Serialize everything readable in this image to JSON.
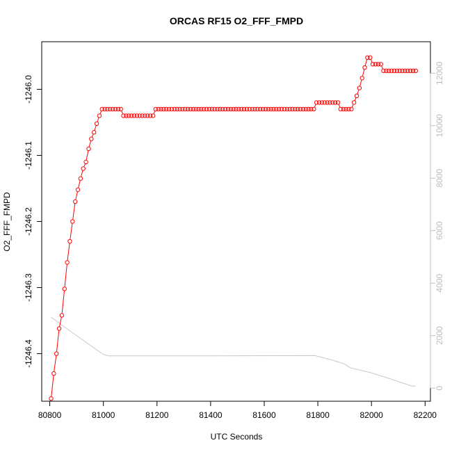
{
  "chart_data": {
    "type": "scatter",
    "title": "ORCAS RF15 O2_FFF_FMPD",
    "xlabel": "UTC Seconds",
    "ylabel": "O2_FFF_FMPD",
    "xlim": [
      80770,
      82220
    ],
    "ylim": [
      -1246.472,
      -1245.928
    ],
    "x_ticks": [
      80800,
      81000,
      81200,
      81400,
      81600,
      81800,
      82000,
      82200
    ],
    "y_ticks": [
      -1246.0,
      -1246.1,
      -1246.2,
      -1246.3,
      -1246.4
    ],
    "y_tick_labels": [
      "-1246.0",
      "-1246.1",
      "-1246.2",
      "-1246.3",
      "-1246.4"
    ],
    "y2_lim": [
      -500,
      13200
    ],
    "y2_ticks": [
      0,
      2000,
      4000,
      6000,
      8000,
      10000,
      12000
    ],
    "grid": false,
    "colors": {
      "series": "#ff0000",
      "secondary": "#c8c8c8",
      "right_axis": "#bdbdbd"
    },
    "series": [
      {
        "points": [
          [
            80805,
            -1246.468
          ],
          [
            80815,
            -1246.43
          ],
          [
            80825,
            -1246.4
          ],
          [
            80835,
            -1246.362
          ],
          [
            80845,
            -1246.342
          ],
          [
            80855,
            -1246.302
          ],
          [
            80865,
            -1246.262
          ],
          [
            80875,
            -1246.23
          ],
          [
            80885,
            -1246.2
          ],
          [
            80895,
            -1246.17
          ],
          [
            80905,
            -1246.152
          ],
          [
            80915,
            -1246.135
          ],
          [
            80925,
            -1246.12
          ],
          [
            80935,
            -1246.11
          ],
          [
            80945,
            -1246.09
          ],
          [
            80955,
            -1246.075
          ],
          [
            80965,
            -1246.065
          ],
          [
            80975,
            -1246.052
          ],
          [
            80985,
            -1246.04
          ],
          [
            80995,
            -1246.03
          ],
          [
            81005,
            -1246.03
          ],
          [
            81015,
            -1246.03
          ],
          [
            81025,
            -1246.03
          ],
          [
            81035,
            -1246.03
          ],
          [
            81045,
            -1246.03
          ],
          [
            81055,
            -1246.03
          ],
          [
            81065,
            -1246.03
          ],
          [
            81075,
            -1246.04
          ],
          [
            81085,
            -1246.04
          ],
          [
            81095,
            -1246.04
          ],
          [
            81105,
            -1246.04
          ],
          [
            81115,
            -1246.04
          ],
          [
            81125,
            -1246.04
          ],
          [
            81135,
            -1246.04
          ],
          [
            81145,
            -1246.04
          ],
          [
            81155,
            -1246.04
          ],
          [
            81165,
            -1246.04
          ],
          [
            81175,
            -1246.04
          ],
          [
            81185,
            -1246.04
          ],
          [
            81195,
            -1246.03
          ],
          [
            81205,
            -1246.03
          ],
          [
            81215,
            -1246.03
          ],
          [
            81225,
            -1246.03
          ],
          [
            81235,
            -1246.03
          ],
          [
            81245,
            -1246.03
          ],
          [
            81255,
            -1246.03
          ],
          [
            81265,
            -1246.03
          ],
          [
            81275,
            -1246.03
          ],
          [
            81285,
            -1246.03
          ],
          [
            81295,
            -1246.03
          ],
          [
            81305,
            -1246.03
          ],
          [
            81315,
            -1246.03
          ],
          [
            81325,
            -1246.03
          ],
          [
            81335,
            -1246.03
          ],
          [
            81345,
            -1246.03
          ],
          [
            81355,
            -1246.03
          ],
          [
            81365,
            -1246.03
          ],
          [
            81375,
            -1246.03
          ],
          [
            81385,
            -1246.03
          ],
          [
            81395,
            -1246.03
          ],
          [
            81405,
            -1246.03
          ],
          [
            81415,
            -1246.03
          ],
          [
            81425,
            -1246.03
          ],
          [
            81435,
            -1246.03
          ],
          [
            81445,
            -1246.03
          ],
          [
            81455,
            -1246.03
          ],
          [
            81465,
            -1246.03
          ],
          [
            81475,
            -1246.03
          ],
          [
            81485,
            -1246.03
          ],
          [
            81495,
            -1246.03
          ],
          [
            81505,
            -1246.03
          ],
          [
            81515,
            -1246.03
          ],
          [
            81525,
            -1246.03
          ],
          [
            81535,
            -1246.03
          ],
          [
            81545,
            -1246.03
          ],
          [
            81555,
            -1246.03
          ],
          [
            81565,
            -1246.03
          ],
          [
            81575,
            -1246.03
          ],
          [
            81585,
            -1246.03
          ],
          [
            81595,
            -1246.03
          ],
          [
            81605,
            -1246.03
          ],
          [
            81615,
            -1246.03
          ],
          [
            81625,
            -1246.03
          ],
          [
            81635,
            -1246.03
          ],
          [
            81645,
            -1246.03
          ],
          [
            81655,
            -1246.03
          ],
          [
            81665,
            -1246.03
          ],
          [
            81675,
            -1246.03
          ],
          [
            81685,
            -1246.03
          ],
          [
            81695,
            -1246.03
          ],
          [
            81705,
            -1246.03
          ],
          [
            81715,
            -1246.03
          ],
          [
            81725,
            -1246.03
          ],
          [
            81735,
            -1246.03
          ],
          [
            81745,
            -1246.03
          ],
          [
            81755,
            -1246.03
          ],
          [
            81765,
            -1246.03
          ],
          [
            81775,
            -1246.03
          ],
          [
            81785,
            -1246.03
          ],
          [
            81795,
            -1246.02
          ],
          [
            81805,
            -1246.02
          ],
          [
            81815,
            -1246.02
          ],
          [
            81825,
            -1246.02
          ],
          [
            81835,
            -1246.02
          ],
          [
            81845,
            -1246.02
          ],
          [
            81855,
            -1246.02
          ],
          [
            81865,
            -1246.02
          ],
          [
            81875,
            -1246.02
          ],
          [
            81885,
            -1246.03
          ],
          [
            81895,
            -1246.03
          ],
          [
            81905,
            -1246.03
          ],
          [
            81915,
            -1246.03
          ],
          [
            81925,
            -1246.03
          ],
          [
            81935,
            -1246.02
          ],
          [
            81945,
            -1246.01
          ],
          [
            81955,
            -1245.998
          ],
          [
            81965,
            -1245.983
          ],
          [
            81975,
            -1245.967
          ],
          [
            81985,
            -1245.952
          ],
          [
            81995,
            -1245.952
          ],
          [
            82005,
            -1245.962
          ],
          [
            82015,
            -1245.962
          ],
          [
            82025,
            -1245.962
          ],
          [
            82035,
            -1245.962
          ],
          [
            82045,
            -1245.972
          ],
          [
            82055,
            -1245.972
          ],
          [
            82065,
            -1245.972
          ],
          [
            82075,
            -1245.972
          ],
          [
            82085,
            -1245.972
          ],
          [
            82095,
            -1245.972
          ],
          [
            82105,
            -1245.972
          ],
          [
            82115,
            -1245.972
          ],
          [
            82125,
            -1245.972
          ],
          [
            82135,
            -1245.972
          ],
          [
            82145,
            -1245.972
          ],
          [
            82155,
            -1245.972
          ],
          [
            82165,
            -1245.972
          ]
        ]
      },
      {
        "axis": "right",
        "points": [
          [
            80805,
            2700
          ],
          [
            80900,
            2000
          ],
          [
            81000,
            1280
          ],
          [
            81020,
            1230
          ],
          [
            81400,
            1230
          ],
          [
            81790,
            1240
          ],
          [
            81850,
            1080
          ],
          [
            81900,
            920
          ],
          [
            81920,
            780
          ],
          [
            82000,
            580
          ],
          [
            82050,
            420
          ],
          [
            82150,
            80
          ],
          [
            82165,
            80
          ]
        ]
      }
    ]
  }
}
